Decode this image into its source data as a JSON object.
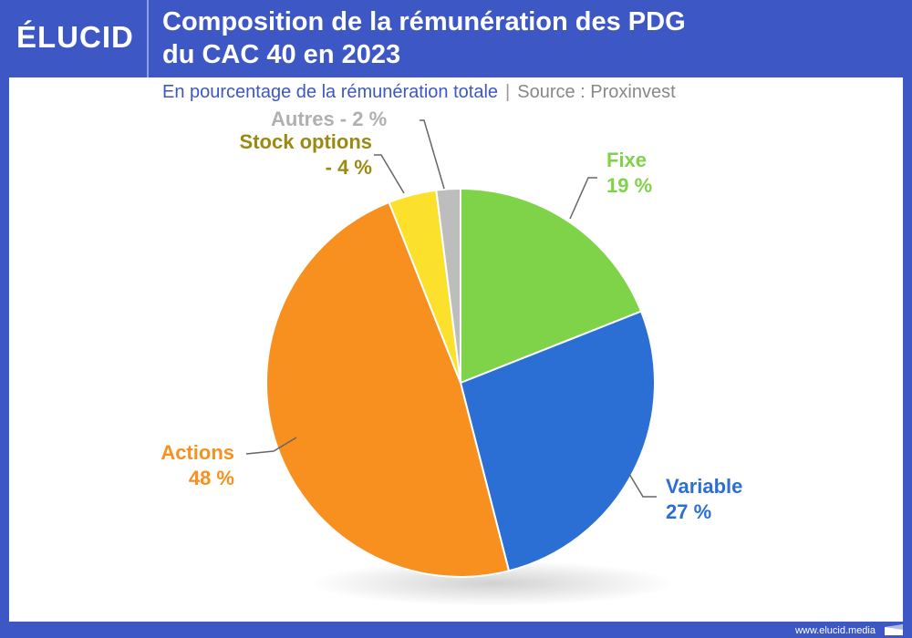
{
  "header": {
    "logo": "ÉLUCID",
    "title_line1": "Composition de la rémunération des PDG",
    "title_line2": "du CAC 40 en 2023",
    "subtitle": "En pourcentage de la rémunération totale",
    "separator": "|",
    "source": "Source : Proxinvest"
  },
  "footer": {
    "url": "www.elucid.media"
  },
  "labels": {
    "fixe_name": "Fixe",
    "fixe_val": "19 %",
    "variable_name": "Variable",
    "variable_val": "27 %",
    "actions_name": "Actions",
    "actions_val": "48 %",
    "stock_name": "Stock options",
    "stock_val": "- 4 %",
    "autres": "Autres - 2 %"
  },
  "chart_data": {
    "type": "pie",
    "title": "Composition de la rémunération des PDG du CAC 40 en 2023",
    "subtitle": "En pourcentage de la rémunération totale | Source : Proxinvest",
    "categories": [
      "Fixe",
      "Variable",
      "Actions",
      "Stock options",
      "Autres"
    ],
    "values": [
      19,
      27,
      48,
      4,
      2
    ],
    "colors": [
      "#7ed348",
      "#2b6fd4",
      "#f7901e",
      "#fbe12b",
      "#bdbdbd"
    ],
    "unit": "%"
  }
}
